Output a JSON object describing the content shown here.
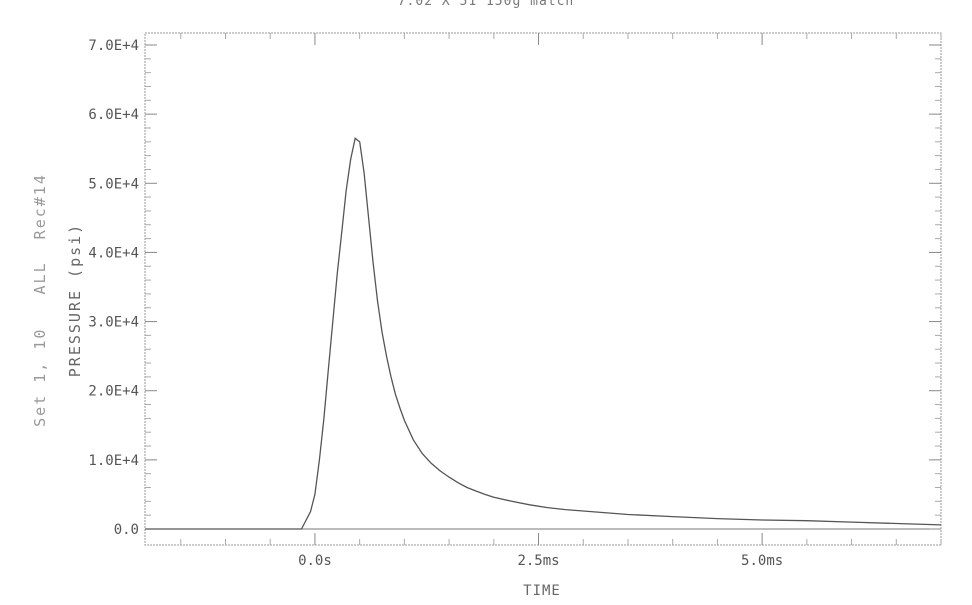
{
  "chart_data": {
    "type": "line",
    "title": "7.02 X 51 150g match",
    "side_label": "Set 1, 10   ALL  Rec#14",
    "ylabel": "PRESSURE (psi)",
    "xlabel": "TIME",
    "xlim": [
      -1.9,
      7.0
    ],
    "ylim": [
      0,
      70000
    ],
    "x_ticks": [
      0.0,
      2.5,
      5.0
    ],
    "x_tick_labels": [
      "0.0s",
      "2.5ms",
      "5.0ms"
    ],
    "y_ticks": [
      0,
      10000,
      20000,
      30000,
      40000,
      50000,
      60000,
      70000
    ],
    "y_tick_labels": [
      "0.0",
      "1.0E+4",
      "2.0E+4",
      "3.0E+4",
      "4.0E+4",
      "5.0E+4",
      "6.0E+4",
      "7.0E+4"
    ],
    "grid": false,
    "line_color": "#555555",
    "series": [
      {
        "x": [
          -1.9,
          -0.6,
          -0.15,
          -0.05,
          0.0,
          0.05,
          0.1,
          0.15,
          0.2,
          0.25,
          0.3,
          0.35,
          0.4,
          0.45,
          0.5,
          0.55,
          0.6,
          0.65,
          0.7,
          0.75,
          0.8,
          0.85,
          0.9,
          0.95,
          1.0,
          1.1,
          1.2,
          1.3,
          1.4,
          1.5,
          1.6,
          1.7,
          1.8,
          1.9,
          2.0,
          2.2,
          2.4,
          2.6,
          2.8,
          3.0,
          3.5,
          4.0,
          4.5,
          5.0,
          5.5,
          6.0,
          6.5,
          7.0
        ],
        "y": [
          0,
          0,
          0,
          2500,
          5000,
          10000,
          16000,
          23000,
          30000,
          37000,
          43000,
          49000,
          53500,
          56500,
          56000,
          51500,
          45000,
          38500,
          33000,
          28500,
          25000,
          22000,
          19500,
          17500,
          15700,
          12900,
          10900,
          9500,
          8400,
          7500,
          6700,
          6000,
          5500,
          5000,
          4600,
          4000,
          3500,
          3100,
          2800,
          2600,
          2100,
          1800,
          1500,
          1300,
          1200,
          1000,
          800,
          600
        ]
      }
    ]
  }
}
